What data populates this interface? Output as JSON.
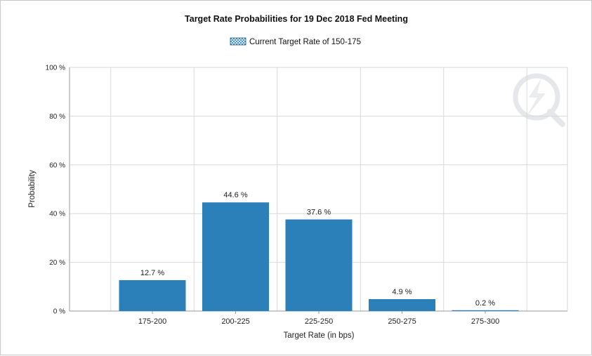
{
  "chart_data": {
    "type": "bar",
    "title": "Target Rate Probabilities for 19 Dec 2018 Fed Meeting",
    "legend": {
      "label": "Current Target Rate of 150-175",
      "placement": "top-center"
    },
    "categories": [
      "175-200",
      "200-225",
      "225-250",
      "250-275",
      "275-300"
    ],
    "values": [
      12.7,
      44.6,
      37.6,
      4.9,
      0.2
    ],
    "data_labels": [
      "12.7 %",
      "44.6 %",
      "37.6 %",
      "4.9 %",
      "0.2 %"
    ],
    "xlabel": "Target Rate (in bps)",
    "ylabel": "Probability",
    "ylim": [
      0,
      100
    ],
    "yticks": [
      0,
      20,
      40,
      60,
      80,
      100
    ],
    "ytick_labels": [
      "0 %",
      "20 %",
      "40 %",
      "60 %",
      "80 %",
      "100 %"
    ],
    "grid": true
  },
  "colors": {
    "bar": "#2b80b9",
    "grid": "#d9d9d9",
    "axis": "#9a9a9a",
    "legend_swatch": "#2b80b9"
  },
  "watermark": {
    "icon": "cme-quikstrike-logo-icon"
  }
}
